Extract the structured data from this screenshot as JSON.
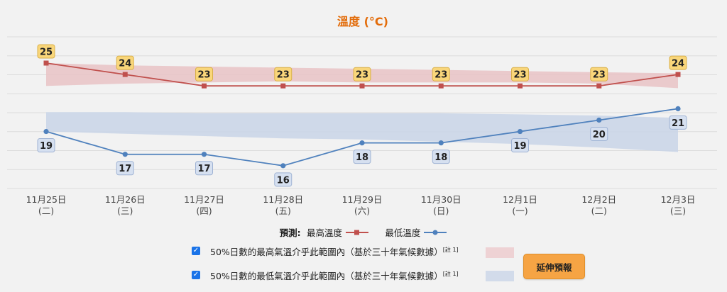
{
  "chart_data": {
    "type": "line",
    "title": "溫度 (°C)",
    "categories": [
      "11月25日",
      "11月26日",
      "11月27日",
      "11月28日",
      "11月29日",
      "11月30日",
      "12月1日",
      "12月2日",
      "12月3日"
    ],
    "weekdays": [
      "(二)",
      "(三)",
      "(四)",
      "(五)",
      "(六)",
      "(日)",
      "(一)",
      "(二)",
      "(三)"
    ],
    "series": [
      {
        "name": "最高溫度",
        "values": [
          25,
          24,
          23,
          23,
          23,
          23,
          23,
          23,
          24
        ],
        "color": "#c0504d"
      },
      {
        "name": "最低溫度",
        "values": [
          19,
          17,
          17,
          16,
          18,
          18,
          19,
          20,
          21
        ],
        "color": "#4f81bd"
      }
    ],
    "bands": [
      {
        "name": "max_band",
        "lower": [
          23.0,
          23.2,
          23.3,
          23.4,
          23.3,
          23.3,
          23.3,
          23.2,
          22.8
        ],
        "upper": [
          25.0,
          24.8,
          24.7,
          24.6,
          24.5,
          24.4,
          24.3,
          24.2,
          24.1
        ],
        "color": "#e9c3c6"
      },
      {
        "name": "min_band",
        "lower": [
          19.0,
          18.8,
          18.6,
          18.4,
          18.3,
          18.1,
          17.9,
          17.6,
          17.2
        ],
        "upper": [
          20.7,
          20.7,
          20.6,
          20.6,
          20.6,
          20.6,
          20.5,
          20.4,
          20.2
        ],
        "color": "#c9d5e8"
      }
    ],
    "ylim": [
      14.0,
      27.3
    ],
    "grid": true
  },
  "legend": {
    "prefix": "預測:",
    "max_label": "最高溫度",
    "min_label": "最低溫度"
  },
  "ranges": {
    "max_text": "50%日數的最高氣溫介乎此範圍內（基於三十年氣候數據）",
    "min_text": "50%日數的最低氣溫介乎此範圍內（基於三十年氣候數據）",
    "note": "[註 1]",
    "max_color": "#eed2d4",
    "min_color": "#d2dbea"
  },
  "button": {
    "label": "延伸預報"
  }
}
